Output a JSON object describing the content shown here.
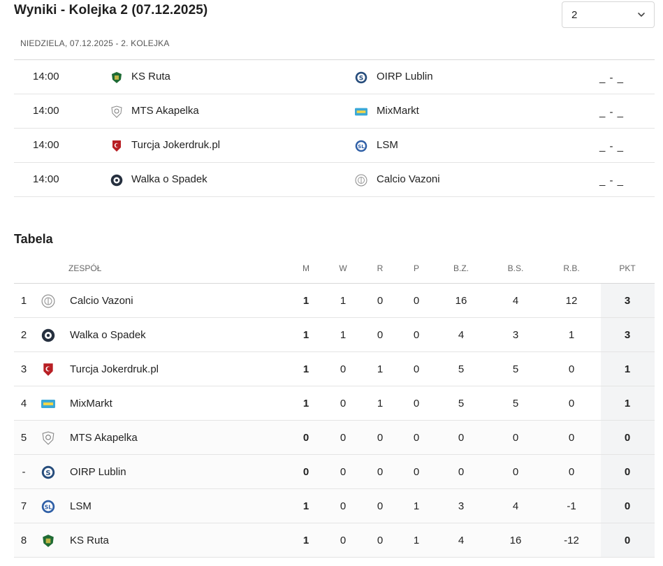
{
  "header": {
    "title": "Wyniki - Kolejka 2 (07.12.2025)",
    "round_select_value": "2"
  },
  "subheading": "NIEDZIELA, 07.12.2025 - 2. KOLEJKA",
  "fixtures": [
    {
      "time": "14:00",
      "home": "KS Ruta",
      "home_logo": "ks-ruta-logo",
      "away": "OIRP Lublin",
      "away_logo": "oirp-lublin-logo",
      "score": "_ - _"
    },
    {
      "time": "14:00",
      "home": "MTS Akapelka",
      "home_logo": "mts-akapelka-logo",
      "away": "MixMarkt",
      "away_logo": "mixmarkt-logo",
      "score": "_ - _"
    },
    {
      "time": "14:00",
      "home": "Turcja Jokerdruk.pl",
      "home_logo": "turcja-logo",
      "away": "LSM",
      "away_logo": "lsm-logo",
      "score": "_ - _"
    },
    {
      "time": "14:00",
      "home": "Walka o Spadek",
      "home_logo": "walka-logo",
      "away": "Calcio Vazoni",
      "away_logo": "calcio-vazoni-logo",
      "score": "_ - _"
    }
  ],
  "table": {
    "title": "Tabela",
    "headers": {
      "team": "ZESPÓŁ",
      "m": "M",
      "w": "W",
      "r": "R",
      "p": "P",
      "bz": "B.Z.",
      "bs": "B.S.",
      "rb": "R.B.",
      "pkt": "PKT"
    },
    "rows": [
      {
        "pos": "1",
        "team": "Calcio Vazoni",
        "logo": "calcio-vazoni-logo",
        "m": "1",
        "w": "1",
        "r": "0",
        "p": "0",
        "bz": "16",
        "bs": "4",
        "rb": "12",
        "pkt": "3"
      },
      {
        "pos": "2",
        "team": "Walka o Spadek",
        "logo": "walka-logo",
        "m": "1",
        "w": "1",
        "r": "0",
        "p": "0",
        "bz": "4",
        "bs": "3",
        "rb": "1",
        "pkt": "3"
      },
      {
        "pos": "3",
        "team": "Turcja Jokerdruk.pl",
        "logo": "turcja-logo",
        "m": "1",
        "w": "0",
        "r": "1",
        "p": "0",
        "bz": "5",
        "bs": "5",
        "rb": "0",
        "pkt": "1"
      },
      {
        "pos": "4",
        "team": "MixMarkt",
        "logo": "mixmarkt-logo",
        "m": "1",
        "w": "0",
        "r": "1",
        "p": "0",
        "bz": "5",
        "bs": "5",
        "rb": "0",
        "pkt": "1"
      },
      {
        "pos": "5",
        "team": "MTS Akapelka",
        "logo": "mts-akapelka-logo",
        "m": "0",
        "w": "0",
        "r": "0",
        "p": "0",
        "bz": "0",
        "bs": "0",
        "rb": "0",
        "pkt": "0"
      },
      {
        "pos": "-",
        "team": "OIRP Lublin",
        "logo": "oirp-lublin-logo",
        "m": "0",
        "w": "0",
        "r": "0",
        "p": "0",
        "bz": "0",
        "bs": "0",
        "rb": "0",
        "pkt": "0"
      },
      {
        "pos": "7",
        "team": "LSM",
        "logo": "lsm-logo",
        "m": "1",
        "w": "0",
        "r": "0",
        "p": "1",
        "bz": "3",
        "bs": "4",
        "rb": "-1",
        "pkt": "0"
      },
      {
        "pos": "8",
        "team": "KS Ruta",
        "logo": "ks-ruta-logo",
        "m": "1",
        "w": "0",
        "r": "0",
        "p": "1",
        "bz": "4",
        "bs": "16",
        "rb": "-12",
        "pkt": "0"
      }
    ]
  }
}
